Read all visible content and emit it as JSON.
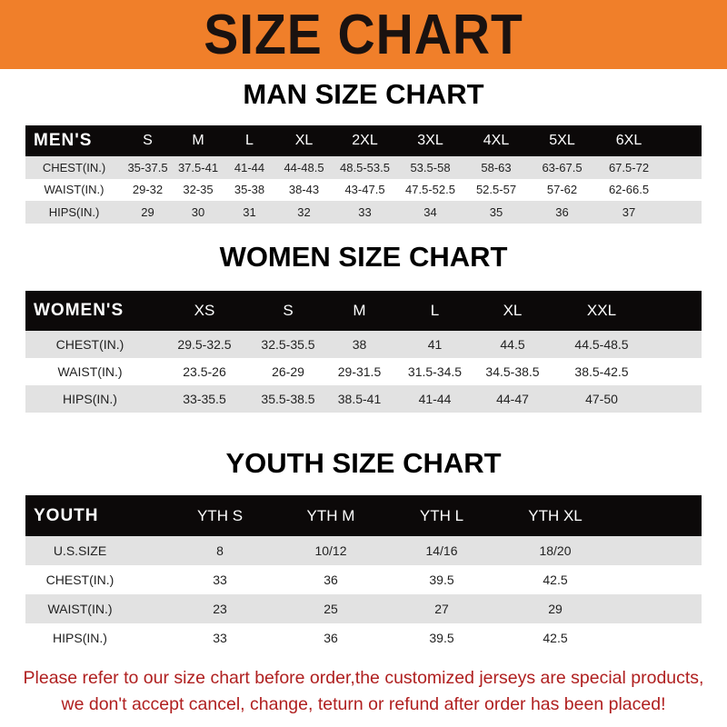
{
  "banner": {
    "title": "SIZE CHART",
    "color": "#f07f2a"
  },
  "men": {
    "title": "MAN SIZE CHART",
    "header": [
      "MEN'S",
      "S",
      "M",
      "L",
      "XL",
      "2XL",
      "3XL",
      "4XL",
      "5XL",
      "6XL"
    ],
    "rows": [
      [
        "CHEST(IN.)",
        "35-37.5",
        "37.5-41",
        "41-44",
        "44-48.5",
        "48.5-53.5",
        "53.5-58",
        "58-63",
        "63-67.5",
        "67.5-72"
      ],
      [
        "WAIST(IN.)",
        "29-32",
        "32-35",
        "35-38",
        "38-43",
        "43-47.5",
        "47.5-52.5",
        "52.5-57",
        "57-62",
        "62-66.5"
      ],
      [
        "HIPS(IN.)",
        "29",
        "30",
        "31",
        "32",
        "33",
        "34",
        "35",
        "36",
        "37"
      ]
    ]
  },
  "women": {
    "title": "WOMEN SIZE CHART",
    "header": [
      "WOMEN'S",
      "XS",
      "S",
      "M",
      "L",
      "XL",
      "XXL"
    ],
    "rows": [
      [
        "CHEST(IN.)",
        "29.5-32.5",
        "32.5-35.5",
        "38",
        "41",
        "44.5",
        "44.5-48.5"
      ],
      [
        "WAIST(IN.)",
        "23.5-26",
        "26-29",
        "29-31.5",
        "31.5-34.5",
        "34.5-38.5",
        "38.5-42.5"
      ],
      [
        "HIPS(IN.)",
        "33-35.5",
        "35.5-38.5",
        "38.5-41",
        "41-44",
        "44-47",
        "47-50"
      ]
    ]
  },
  "youth": {
    "title": "YOUTH SIZE CHART",
    "header": [
      "YOUTH",
      "YTH S",
      "YTH M",
      "YTH L",
      "YTH XL"
    ],
    "rows": [
      [
        "U.S.SIZE",
        "8",
        "10/12",
        "14/16",
        "18/20"
      ],
      [
        "CHEST(IN.)",
        "33",
        "36",
        "39.5",
        "42.5"
      ],
      [
        "WAIST(IN.)",
        "23",
        "25",
        "27",
        "29"
      ],
      [
        "HIPS(IN.)",
        "33",
        "36",
        "39.5",
        "42.5"
      ]
    ]
  },
  "note": {
    "line1": "Please refer to our size chart before order,the customized jerseys are special products,",
    "line2": "we don't accept cancel, change, teturn or refund after order has been placed!",
    "color": "#b02020"
  }
}
